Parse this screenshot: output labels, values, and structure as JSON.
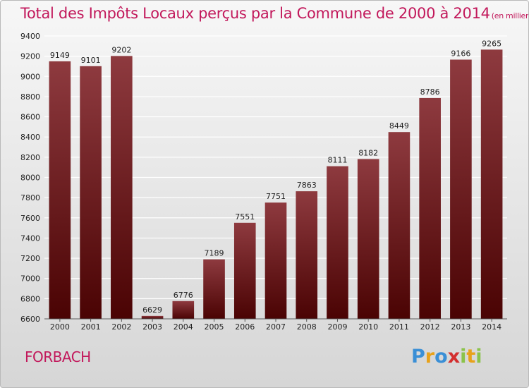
{
  "title": "Total des Impôts Locaux perçus par la Commune de 2000 à 2014",
  "unit": "(en milliers d'€)",
  "commune": "FORBACH",
  "logo_text": "Proxiti",
  "colors": {
    "title": "#c2185b",
    "bar_top": "#8e3a3f",
    "bar_bottom": "#4a0303"
  },
  "chart_data": {
    "type": "bar",
    "title": "Total des Impôts Locaux perçus par la Commune de 2000 à 2014",
    "xlabel": "",
    "ylabel": "",
    "categories": [
      "2000",
      "2001",
      "2002",
      "2003",
      "2004",
      "2005",
      "2006",
      "2007",
      "2008",
      "2009",
      "2010",
      "2011",
      "2012",
      "2013",
      "2014"
    ],
    "values": [
      9149,
      9101,
      9202,
      6629,
      6776,
      7189,
      7551,
      7751,
      7863,
      8111,
      8182,
      8449,
      8786,
      9166,
      9265
    ],
    "ylim": [
      6600,
      9400
    ],
    "yticks": [
      6600,
      6800,
      7000,
      7200,
      7400,
      7600,
      7800,
      8000,
      8200,
      8400,
      8600,
      8800,
      9000,
      9200,
      9400
    ],
    "grid": true,
    "legend": "none"
  }
}
